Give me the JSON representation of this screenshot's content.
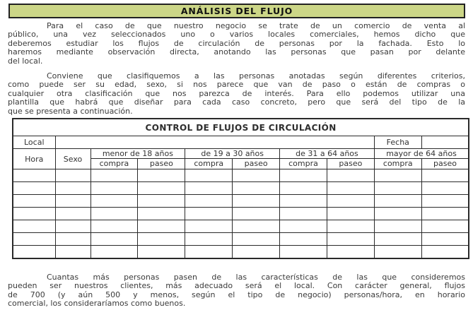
{
  "header": {
    "title": "ANÁLISIS DEL FLUJO"
  },
  "content": {
    "paragraphs": [
      {
        "lines": [
          "Para el caso de que nuestro negocio se trate de un comercio de venta al",
          "público, una vez seleccionados uno o varios locales comerciales, hemos dicho que",
          "deberemos estudiar los flujos de circulación de personas por la fachada. Esto lo",
          "haremos mediante observación directa, anotando las personas que pasan por delante",
          "del local."
        ]
      },
      {
        "lines": [
          "Conviene que clasifiquemos a las personas anotadas según diferentes criterios,",
          "como puede ser su edad, sexo, si nos parece que van de paso o están de compras o",
          "cualquier otra clasificación que nos parezca de interés. Para ello podemos utilizar una",
          "plantilla que habrá que diseñar para cada caso concreto, pero que será del tipo de la",
          "que se presenta a continuación."
        ]
      },
      {
        "lines": [
          "Cuantas más personas pasen de las características de las que consideremos",
          "pueden ser nuestros clientes, más adecuado será el local. Con carácter general, flujos",
          "de 700 (y aún 500 y menos, según el tipo de negocio) personas/hora, en horario",
          "comercial, los consideraríamos como buenos."
        ]
      }
    ]
  },
  "table": {
    "title": "CONTROL DE FLUJOS DE CIRCULACIÓN",
    "local_label": "Local",
    "fecha_label": "Fecha",
    "hora_label": "Hora",
    "sexo_label": "Sexo",
    "age_groups": [
      "menor de 18 años",
      "de 19 a 30 años",
      "de 31 a 64 años",
      "mayor de 64 años"
    ],
    "sub_headers": [
      "compra",
      "paseo"
    ],
    "empty_row_count": 7
  },
  "colors": {
    "title_bg": "#ccd687",
    "border": "#2a2a2a",
    "text": "#3a3a3a"
  }
}
